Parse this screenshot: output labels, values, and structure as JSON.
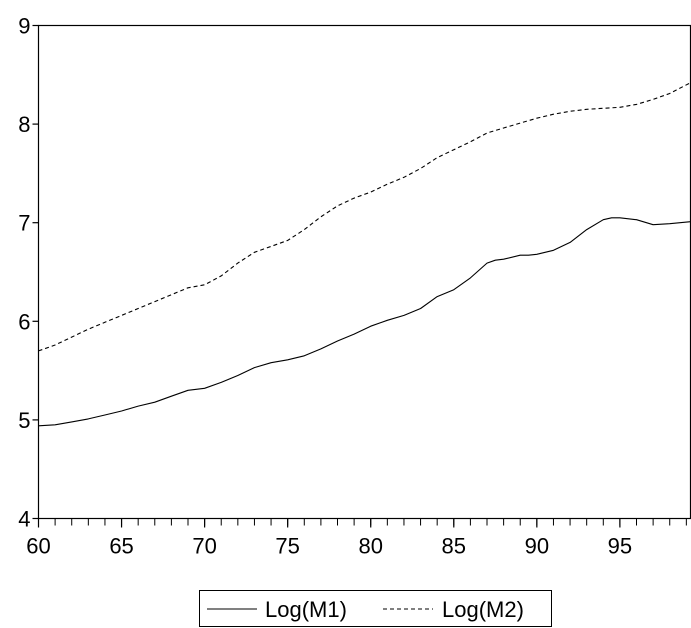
{
  "chart_data": {
    "type": "line",
    "title": "",
    "xlabel": "",
    "ylabel": "",
    "xlim": [
      60,
      99.25
    ],
    "ylim": [
      4,
      9
    ],
    "x_ticks": [
      60,
      65,
      70,
      75,
      80,
      85,
      90,
      95
    ],
    "x_tick_labels": [
      "60",
      "65",
      "70",
      "75",
      "80",
      "85",
      "90",
      "95"
    ],
    "x_minor_tick_step": 1,
    "y_ticks": [
      4,
      5,
      6,
      7,
      8,
      9
    ],
    "y_tick_labels": [
      "4",
      "5",
      "6",
      "7",
      "8",
      "9"
    ],
    "grid": false,
    "legend_position": "bottom",
    "series": [
      {
        "name": "Log(M1)",
        "style": "solid",
        "color": "#000000",
        "points": [
          [
            60.0,
            4.94
          ],
          [
            61.0,
            4.95
          ],
          [
            62.0,
            4.98
          ],
          [
            63.0,
            5.01
          ],
          [
            64.0,
            5.05
          ],
          [
            65.0,
            5.09
          ],
          [
            66.0,
            5.14
          ],
          [
            67.0,
            5.18
          ],
          [
            68.0,
            5.24
          ],
          [
            69.0,
            5.3
          ],
          [
            70.0,
            5.32
          ],
          [
            71.0,
            5.38
          ],
          [
            72.0,
            5.45
          ],
          [
            73.0,
            5.53
          ],
          [
            74.0,
            5.58
          ],
          [
            75.0,
            5.61
          ],
          [
            76.0,
            5.65
          ],
          [
            77.0,
            5.72
          ],
          [
            78.0,
            5.8
          ],
          [
            79.0,
            5.87
          ],
          [
            80.0,
            5.95
          ],
          [
            81.0,
            6.01
          ],
          [
            82.0,
            6.06
          ],
          [
            83.0,
            6.13
          ],
          [
            84.0,
            6.25
          ],
          [
            85.0,
            6.32
          ],
          [
            86.0,
            6.44
          ],
          [
            87.0,
            6.59
          ],
          [
            87.5,
            6.62
          ],
          [
            88.0,
            6.63
          ],
          [
            89.0,
            6.67
          ],
          [
            89.5,
            6.67
          ],
          [
            90.0,
            6.68
          ],
          [
            91.0,
            6.72
          ],
          [
            92.0,
            6.8
          ],
          [
            93.0,
            6.93
          ],
          [
            94.0,
            7.03
          ],
          [
            94.5,
            7.05
          ],
          [
            95.0,
            7.05
          ],
          [
            96.0,
            7.03
          ],
          [
            97.0,
            6.98
          ],
          [
            98.0,
            6.99
          ],
          [
            99.25,
            7.01
          ]
        ]
      },
      {
        "name": "Log(M2)",
        "style": "dashed",
        "color": "#000000",
        "points": [
          [
            60.0,
            5.7
          ],
          [
            61.0,
            5.76
          ],
          [
            62.0,
            5.84
          ],
          [
            63.0,
            5.92
          ],
          [
            64.0,
            5.99
          ],
          [
            65.0,
            6.06
          ],
          [
            66.0,
            6.13
          ],
          [
            67.0,
            6.2
          ],
          [
            68.0,
            6.27
          ],
          [
            69.0,
            6.34
          ],
          [
            70.0,
            6.37
          ],
          [
            71.0,
            6.46
          ],
          [
            72.0,
            6.59
          ],
          [
            73.0,
            6.7
          ],
          [
            74.0,
            6.76
          ],
          [
            75.0,
            6.82
          ],
          [
            76.0,
            6.93
          ],
          [
            77.0,
            7.06
          ],
          [
            78.0,
            7.17
          ],
          [
            79.0,
            7.25
          ],
          [
            80.0,
            7.31
          ],
          [
            81.0,
            7.39
          ],
          [
            82.0,
            7.46
          ],
          [
            83.0,
            7.55
          ],
          [
            84.0,
            7.66
          ],
          [
            85.0,
            7.74
          ],
          [
            86.0,
            7.82
          ],
          [
            87.0,
            7.91
          ],
          [
            88.0,
            7.96
          ],
          [
            89.0,
            8.01
          ],
          [
            90.0,
            8.06
          ],
          [
            91.0,
            8.1
          ],
          [
            92.0,
            8.13
          ],
          [
            93.0,
            8.15
          ],
          [
            94.0,
            8.16
          ],
          [
            95.0,
            8.17
          ],
          [
            96.0,
            8.2
          ],
          [
            97.0,
            8.25
          ],
          [
            98.0,
            8.31
          ],
          [
            99.25,
            8.42
          ]
        ]
      }
    ]
  }
}
